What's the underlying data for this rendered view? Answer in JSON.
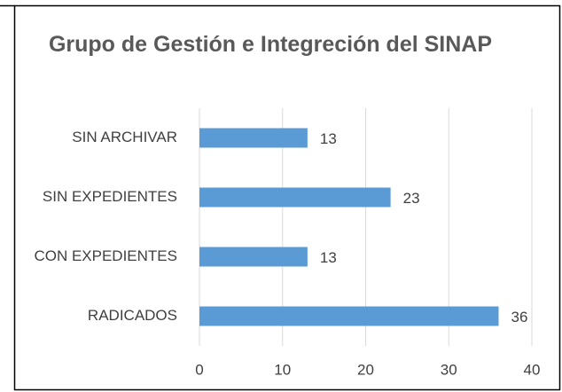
{
  "chart_data": {
    "type": "bar",
    "orientation": "horizontal",
    "title": "Grupo de Gestión e Integreción del SINAP",
    "categories": [
      "SIN ARCHIVAR",
      "SIN EXPEDIENTES",
      "CON EXPEDIENTES",
      "RADICADOS"
    ],
    "values": [
      13,
      23,
      13,
      36
    ],
    "color": "#5b9bd5",
    "xlim": [
      0,
      40
    ],
    "xticks": [
      0,
      10,
      20,
      30,
      40
    ],
    "grid": true
  }
}
